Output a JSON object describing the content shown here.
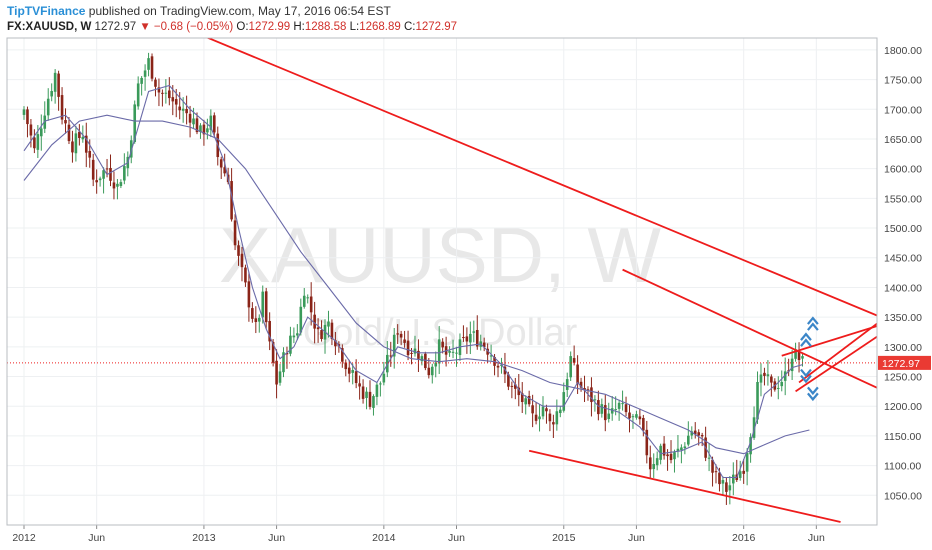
{
  "header": {
    "brand": "TipTVFinance",
    "published": " published on TradingView.com, May 17, 2016 06:54 EST",
    "symbol": "FX:XAUUSD, W",
    "last": "1272.97",
    "change": "−0.68 (−0.05%)",
    "open_label": "O:",
    "open": "1272.99",
    "high_label": "H:",
    "high": "1288.58",
    "low_label": "L:",
    "low": "1268.89",
    "close_label": "C:",
    "close": "1272.97"
  },
  "watermark": {
    "symbol": "XAUUSD, W",
    "description": "Gold/U.S. Dollar"
  },
  "chart_data": {
    "type": "candlestick",
    "title": "FX:XAUUSD, W",
    "ylim": [
      1000,
      1820
    ],
    "y_ticks": [
      "1050.00",
      "1100.00",
      "1150.00",
      "1200.00",
      "1250.00",
      "1300.00",
      "1350.00",
      "1400.00",
      "1450.00",
      "1500.00",
      "1550.00",
      "1600.00",
      "1650.00",
      "1700.00",
      "1750.00",
      "1800.00"
    ],
    "x_ticks": [
      "2012",
      "Jun",
      "2013",
      "Jun",
      "2014",
      "Jun",
      "2015",
      "Jun",
      "2016",
      "Jun"
    ],
    "x_tick_t": [
      0,
      21,
      52,
      73,
      104,
      125,
      156,
      177,
      208,
      229
    ],
    "current_price": 1272.97,
    "current_price_label": "1272.97",
    "price_path": [
      {
        "t": 0,
        "p": 1700
      },
      {
        "t": 3,
        "p": 1630
      },
      {
        "t": 6,
        "p": 1700
      },
      {
        "t": 9,
        "p": 1760
      },
      {
        "t": 11,
        "p": 1690
      },
      {
        "t": 14,
        "p": 1640
      },
      {
        "t": 17,
        "p": 1660
      },
      {
        "t": 20,
        "p": 1580
      },
      {
        "t": 24,
        "p": 1600
      },
      {
        "t": 27,
        "p": 1570
      },
      {
        "t": 30,
        "p": 1620
      },
      {
        "t": 33,
        "p": 1740
      },
      {
        "t": 36,
        "p": 1780
      },
      {
        "t": 39,
        "p": 1730
      },
      {
        "t": 42,
        "p": 1720
      },
      {
        "t": 45,
        "p": 1700
      },
      {
        "t": 48,
        "p": 1690
      },
      {
        "t": 51,
        "p": 1660
      },
      {
        "t": 54,
        "p": 1680
      },
      {
        "t": 56,
        "p": 1620
      },
      {
        "t": 59,
        "p": 1580
      },
      {
        "t": 61,
        "p": 1470
      },
      {
        "t": 64,
        "p": 1400
      },
      {
        "t": 67,
        "p": 1330
      },
      {
        "t": 69,
        "p": 1380
      },
      {
        "t": 71,
        "p": 1300
      },
      {
        "t": 73,
        "p": 1240
      },
      {
        "t": 76,
        "p": 1300
      },
      {
        "t": 79,
        "p": 1330
      },
      {
        "t": 81,
        "p": 1400
      },
      {
        "t": 83,
        "p": 1360
      },
      {
        "t": 85,
        "p": 1320
      },
      {
        "t": 88,
        "p": 1340
      },
      {
        "t": 91,
        "p": 1300
      },
      {
        "t": 94,
        "p": 1260
      },
      {
        "t": 97,
        "p": 1230
      },
      {
        "t": 100,
        "p": 1210
      },
      {
        "t": 103,
        "p": 1240
      },
      {
        "t": 106,
        "p": 1290
      },
      {
        "t": 108,
        "p": 1330
      },
      {
        "t": 111,
        "p": 1300
      },
      {
        "t": 114,
        "p": 1290
      },
      {
        "t": 117,
        "p": 1260
      },
      {
        "t": 120,
        "p": 1300
      },
      {
        "t": 123,
        "p": 1280
      },
      {
        "t": 126,
        "p": 1300
      },
      {
        "t": 129,
        "p": 1320
      },
      {
        "t": 132,
        "p": 1310
      },
      {
        "t": 135,
        "p": 1290
      },
      {
        "t": 138,
        "p": 1260
      },
      {
        "t": 141,
        "p": 1230
      },
      {
        "t": 144,
        "p": 1210
      },
      {
        "t": 147,
        "p": 1180
      },
      {
        "t": 150,
        "p": 1200
      },
      {
        "t": 152,
        "p": 1170
      },
      {
        "t": 155,
        "p": 1200
      },
      {
        "t": 158,
        "p": 1280
      },
      {
        "t": 160,
        "p": 1240
      },
      {
        "t": 163,
        "p": 1220
      },
      {
        "t": 166,
        "p": 1200
      },
      {
        "t": 169,
        "p": 1180
      },
      {
        "t": 172,
        "p": 1200
      },
      {
        "t": 175,
        "p": 1180
      },
      {
        "t": 178,
        "p": 1170
      },
      {
        "t": 181,
        "p": 1100
      },
      {
        "t": 184,
        "p": 1130
      },
      {
        "t": 187,
        "p": 1110
      },
      {
        "t": 190,
        "p": 1130
      },
      {
        "t": 193,
        "p": 1160
      },
      {
        "t": 196,
        "p": 1140
      },
      {
        "t": 199,
        "p": 1090
      },
      {
        "t": 201,
        "p": 1070
      },
      {
        "t": 203,
        "p": 1060
      },
      {
        "t": 205,
        "p": 1075
      },
      {
        "t": 208,
        "p": 1100
      },
      {
        "t": 210,
        "p": 1160
      },
      {
        "t": 212,
        "p": 1230
      },
      {
        "t": 214,
        "p": 1250
      },
      {
        "t": 216,
        "p": 1230
      },
      {
        "t": 218,
        "p": 1240
      },
      {
        "t": 220,
        "p": 1250
      },
      {
        "t": 222,
        "p": 1290
      },
      {
        "t": 224,
        "p": 1280
      },
      {
        "t": 225,
        "p": 1273
      }
    ],
    "ma_fast": [
      {
        "t": 0,
        "p": 1630
      },
      {
        "t": 6,
        "p": 1680
      },
      {
        "t": 12,
        "p": 1690
      },
      {
        "t": 18,
        "p": 1650
      },
      {
        "t": 24,
        "p": 1590
      },
      {
        "t": 30,
        "p": 1610
      },
      {
        "t": 36,
        "p": 1730
      },
      {
        "t": 42,
        "p": 1740
      },
      {
        "t": 48,
        "p": 1700
      },
      {
        "t": 54,
        "p": 1670
      },
      {
        "t": 58,
        "p": 1610
      },
      {
        "t": 62,
        "p": 1500
      },
      {
        "t": 66,
        "p": 1400
      },
      {
        "t": 70,
        "p": 1330
      },
      {
        "t": 74,
        "p": 1280
      },
      {
        "t": 78,
        "p": 1300
      },
      {
        "t": 82,
        "p": 1350
      },
      {
        "t": 86,
        "p": 1330
      },
      {
        "t": 90,
        "p": 1310
      },
      {
        "t": 96,
        "p": 1260
      },
      {
        "t": 102,
        "p": 1240
      },
      {
        "t": 108,
        "p": 1300
      },
      {
        "t": 114,
        "p": 1290
      },
      {
        "t": 120,
        "p": 1290
      },
      {
        "t": 126,
        "p": 1300
      },
      {
        "t": 132,
        "p": 1305
      },
      {
        "t": 138,
        "p": 1270
      },
      {
        "t": 144,
        "p": 1220
      },
      {
        "t": 150,
        "p": 1200
      },
      {
        "t": 156,
        "p": 1200
      },
      {
        "t": 160,
        "p": 1240
      },
      {
        "t": 166,
        "p": 1200
      },
      {
        "t": 172,
        "p": 1190
      },
      {
        "t": 178,
        "p": 1165
      },
      {
        "t": 184,
        "p": 1120
      },
      {
        "t": 190,
        "p": 1125
      },
      {
        "t": 196,
        "p": 1140
      },
      {
        "t": 202,
        "p": 1080
      },
      {
        "t": 206,
        "p": 1080
      },
      {
        "t": 210,
        "p": 1140
      },
      {
        "t": 214,
        "p": 1220
      },
      {
        "t": 218,
        "p": 1240
      },
      {
        "t": 222,
        "p": 1265
      },
      {
        "t": 225,
        "p": 1270
      }
    ],
    "ma_slow": [
      {
        "t": 0,
        "p": 1580
      },
      {
        "t": 8,
        "p": 1640
      },
      {
        "t": 16,
        "p": 1680
      },
      {
        "t": 24,
        "p": 1690
      },
      {
        "t": 32,
        "p": 1680
      },
      {
        "t": 40,
        "p": 1680
      },
      {
        "t": 48,
        "p": 1670
      },
      {
        "t": 56,
        "p": 1650
      },
      {
        "t": 64,
        "p": 1600
      },
      {
        "t": 72,
        "p": 1530
      },
      {
        "t": 80,
        "p": 1460
      },
      {
        "t": 88,
        "p": 1400
      },
      {
        "t": 96,
        "p": 1340
      },
      {
        "t": 104,
        "p": 1300
      },
      {
        "t": 112,
        "p": 1280
      },
      {
        "t": 120,
        "p": 1275
      },
      {
        "t": 128,
        "p": 1280
      },
      {
        "t": 136,
        "p": 1275
      },
      {
        "t": 144,
        "p": 1260
      },
      {
        "t": 152,
        "p": 1240
      },
      {
        "t": 160,
        "p": 1230
      },
      {
        "t": 168,
        "p": 1220
      },
      {
        "t": 176,
        "p": 1200
      },
      {
        "t": 184,
        "p": 1180
      },
      {
        "t": 192,
        "p": 1160
      },
      {
        "t": 200,
        "p": 1130
      },
      {
        "t": 208,
        "p": 1120
      },
      {
        "t": 214,
        "p": 1135
      },
      {
        "t": 220,
        "p": 1150
      },
      {
        "t": 227,
        "p": 1160
      }
    ],
    "trendlines": [
      {
        "t1": 45,
        "p1": 1840,
        "t2": 258,
        "p2": 1325
      },
      {
        "t1": 173,
        "p1": 1430,
        "t2": 258,
        "p2": 1200
      },
      {
        "t1": 146,
        "p1": 1125,
        "t2": 236,
        "p2": 1005
      },
      {
        "t1": 219,
        "p1": 1285,
        "t2": 252,
        "p2": 1345
      },
      {
        "t1": 223,
        "p1": 1225,
        "t2": 258,
        "p2": 1362
      },
      {
        "t1": 224,
        "p1": 1240,
        "t2": 249,
        "p2": 1350
      }
    ],
    "arrows": [
      {
        "t": 226,
        "p": 1318,
        "dir": "up"
      },
      {
        "t": 228,
        "p": 1345,
        "dir": "up"
      },
      {
        "t": 226,
        "p": 1255,
        "dir": "down"
      },
      {
        "t": 228,
        "p": 1225,
        "dir": "down"
      }
    ],
    "colors": {
      "bull": "#3a9a5a",
      "bear": "#8a2418",
      "trendline": "#ee1c1c",
      "ma": "#6a6aa8",
      "arrow": "#3b86c8",
      "price_label_bg": "#ea3a33"
    }
  }
}
